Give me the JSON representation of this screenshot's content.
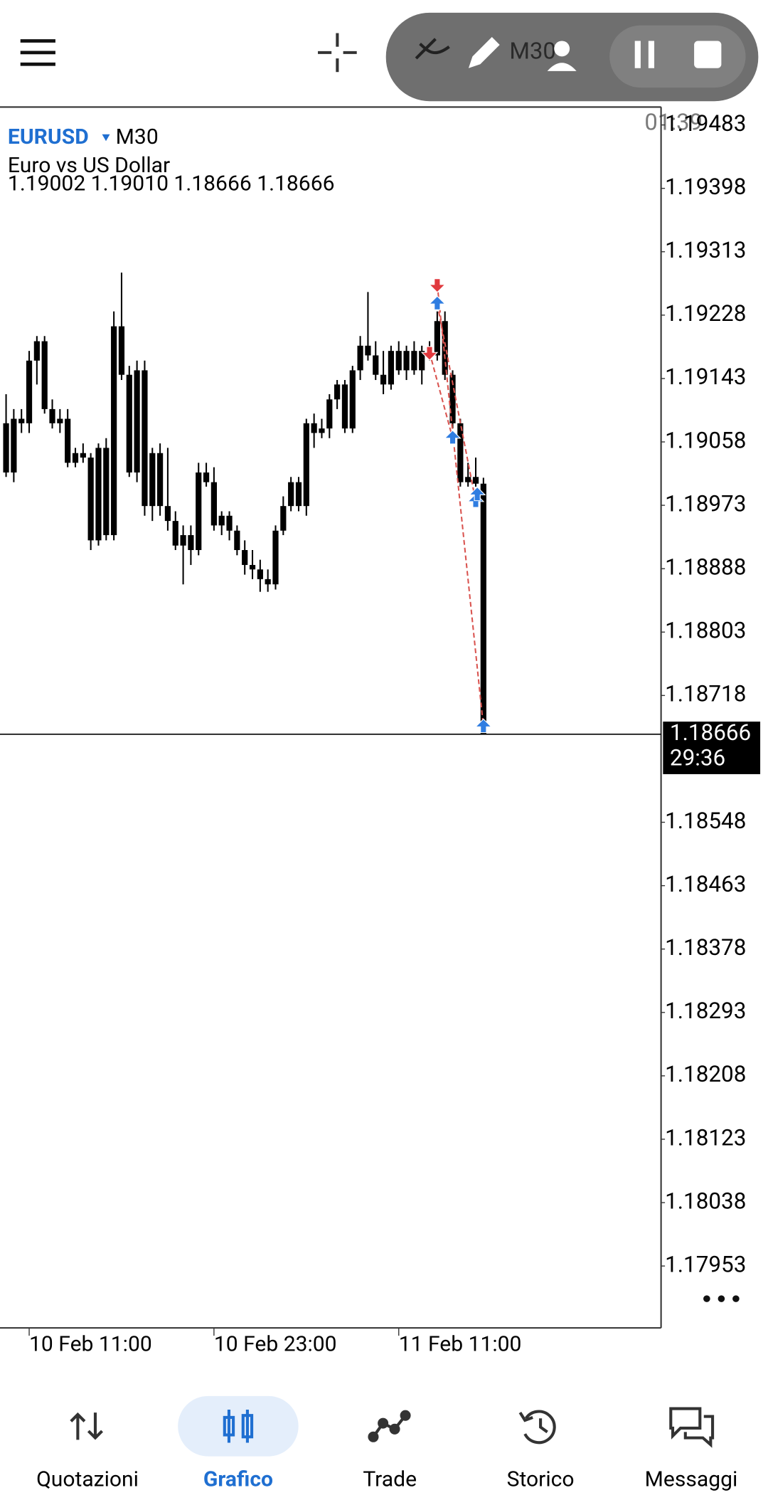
{
  "toolbar": {
    "timeframe": "M30",
    "timer": "01:39"
  },
  "chart_data": {
    "type": "candlestick",
    "symbol": "EURUSD",
    "timeframe": "M30",
    "description": "Euro vs US Dollar",
    "ohlc_text": "1.19002 1.19010 1.18666 1.18666",
    "open": [
      1.19083,
      1.19017,
      1.19089,
      1.19083,
      1.19167,
      1.19193,
      1.19102,
      1.19083,
      1.19089,
      1.1903,
      1.19043,
      1.19037,
      1.18926,
      1.1905,
      1.18933,
      1.19213,
      1.19148,
      1.19017,
      1.19154,
      1.18972,
      1.19043,
      1.18972,
      1.18952,
      1.18919,
      1.18933,
      1.18913,
      1.19017,
      1.19004,
      1.18946,
      1.18959,
      1.18939,
      1.18913,
      1.18893,
      1.18887,
      1.18874,
      1.18867,
      1.18939,
      1.18972,
      1.19004,
      1.18972,
      1.19083,
      1.1907,
      1.19076,
      1.19115,
      1.19135,
      1.19076,
      1.19154,
      1.19187,
      1.19174,
      1.19148,
      1.19135,
      1.1918,
      1.19154,
      1.1918,
      1.19154,
      1.1918,
      1.19174,
      1.1922,
      1.19148,
      1.19083,
      1.19004,
      1.19011,
      1.19002
    ],
    "high": [
      1.19122,
      1.19102,
      1.19102,
      1.1918,
      1.192,
      1.192,
      1.19115,
      1.19102,
      1.19102,
      1.1905,
      1.19056,
      1.19043,
      1.19056,
      1.19063,
      1.19233,
      1.19285,
      1.1916,
      1.19167,
      1.19167,
      1.1905,
      1.19056,
      1.1905,
      1.18965,
      1.18946,
      1.18946,
      1.1903,
      1.1903,
      1.19024,
      1.18965,
      1.18965,
      1.18946,
      1.18926,
      1.18913,
      1.189,
      1.18887,
      1.18946,
      1.18985,
      1.19011,
      1.19011,
      1.19089,
      1.19096,
      1.19089,
      1.19122,
      1.19141,
      1.19141,
      1.1916,
      1.192,
      1.19259,
      1.19193,
      1.1918,
      1.19187,
      1.19193,
      1.19187,
      1.19193,
      1.19187,
      1.19193,
      1.19233,
      1.19233,
      1.19154,
      1.19089,
      1.1903,
      1.19037,
      1.1901
    ],
    "low": [
      1.19011,
      1.19004,
      1.1907,
      1.1907,
      1.19135,
      1.19096,
      1.19076,
      1.1907,
      1.19024,
      1.19024,
      1.1903,
      1.18913,
      1.18919,
      1.18926,
      1.18926,
      1.19141,
      1.19011,
      1.19004,
      1.18959,
      1.18952,
      1.18959,
      1.18939,
      1.18913,
      1.18867,
      1.18893,
      1.18906,
      1.18998,
      1.18939,
      1.18933,
      1.18926,
      1.18906,
      1.1888,
      1.18874,
      1.18857,
      1.18857,
      1.1886,
      1.18933,
      1.18965,
      1.18965,
      1.18959,
      1.1905,
      1.19063,
      1.19063,
      1.19102,
      1.1907,
      1.1907,
      1.19141,
      1.19167,
      1.19141,
      1.19122,
      1.19128,
      1.19148,
      1.19141,
      1.19148,
      1.19135,
      1.19167,
      1.19167,
      1.19141,
      1.19076,
      1.18998,
      1.18998,
      1.18998,
      1.18666
    ],
    "close": [
      1.19017,
      1.19089,
      1.19083,
      1.19167,
      1.19193,
      1.19102,
      1.19083,
      1.19089,
      1.1903,
      1.19043,
      1.19037,
      1.18926,
      1.1905,
      1.18933,
      1.19213,
      1.19148,
      1.19017,
      1.19154,
      1.18972,
      1.19043,
      1.18972,
      1.18952,
      1.18919,
      1.18933,
      1.18913,
      1.19017,
      1.19004,
      1.18946,
      1.18959,
      1.18939,
      1.18913,
      1.18893,
      1.18887,
      1.18874,
      1.18867,
      1.18939,
      1.18972,
      1.19004,
      1.18972,
      1.19083,
      1.1907,
      1.19076,
      1.19115,
      1.19135,
      1.19076,
      1.19154,
      1.19187,
      1.19174,
      1.19148,
      1.19135,
      1.1918,
      1.19154,
      1.1918,
      1.19154,
      1.1918,
      1.19174,
      1.1922,
      1.19148,
      1.19083,
      1.19004,
      1.19011,
      1.19002,
      1.18666
    ],
    "color": "#000000",
    "ylim": [
      1.19507,
      1.1787
    ],
    "yticks": [
      1.19483,
      1.19398,
      1.19313,
      1.19228,
      1.19143,
      1.19058,
      1.18973,
      1.18888,
      1.18803,
      1.18718,
      1.18548,
      1.18463,
      1.18378,
      1.18293,
      1.18208,
      1.18123,
      1.18038,
      1.17953
    ],
    "xlim": [
      -0.79,
      85.07
    ],
    "xticks": [
      {
        "value": 3,
        "label": "10 Feb 11:00"
      },
      {
        "value": 27,
        "label": "10 Feb 23:00"
      },
      {
        "value": 51,
        "label": "11 Feb 11:00"
      }
    ],
    "last_price": 1.18666,
    "countdown": "29:36",
    "buys": {
      "color": "#2f7de1",
      "x": [
        56,
        58,
        61,
        61.2,
        62
      ],
      "y": [
        1.19243,
        1.19063,
        1.18978,
        1.18987,
        1.18676
      ]
    },
    "sells": {
      "color": "#e0393e",
      "x": [
        56,
        55
      ],
      "y": [
        1.19269,
        1.19178
      ]
    }
  },
  "nav": [
    {
      "label": "Quotazioni"
    },
    {
      "label": "Grafico"
    },
    {
      "label": "Trade"
    },
    {
      "label": "Storico"
    },
    {
      "label": "Messaggi"
    }
  ]
}
